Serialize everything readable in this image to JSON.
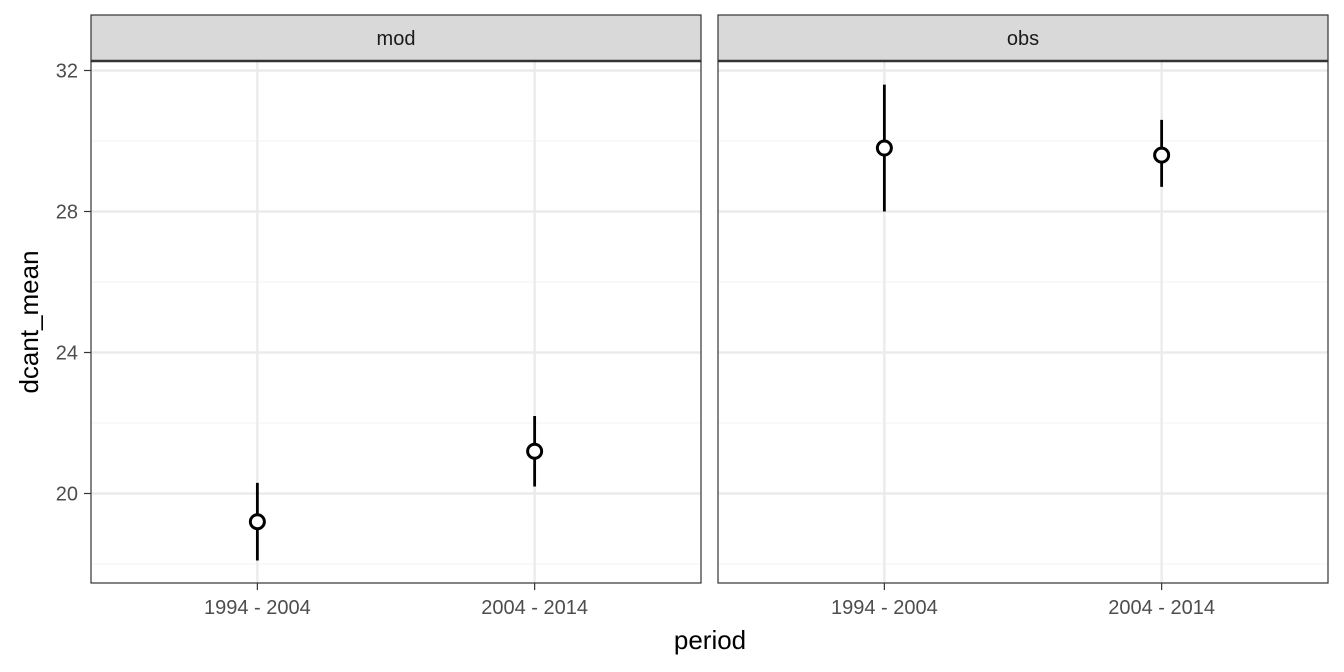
{
  "chart_data": {
    "type": "scatter",
    "xlabel": "period",
    "ylabel": "dcant_mean",
    "categories": [
      "1994 - 2004",
      "2004 - 2014"
    ],
    "ylim": [
      17.5,
      33.3
    ],
    "yticks": [
      20,
      24,
      28,
      32
    ],
    "grid": true,
    "facets": [
      {
        "label": "mod",
        "points": [
          {
            "x": "1994 - 2004",
            "y": 19.2,
            "ymin": 18.1,
            "ymax": 20.3
          },
          {
            "x": "2004 - 2014",
            "y": 21.2,
            "ymin": 20.2,
            "ymax": 22.2
          }
        ]
      },
      {
        "label": "obs",
        "points": [
          {
            "x": "1994 - 2004",
            "y": 29.8,
            "ymin": 28.0,
            "ymax": 31.6
          },
          {
            "x": "2004 - 2014",
            "y": 29.6,
            "ymin": 28.7,
            "ymax": 30.6
          }
        ]
      }
    ],
    "colors": {
      "panel_border": "#333333",
      "grid_major": "#ebebeb",
      "grid_minor": "#f5f5f5",
      "strip_fill": "#d9d9d9",
      "point": "#000000"
    }
  }
}
